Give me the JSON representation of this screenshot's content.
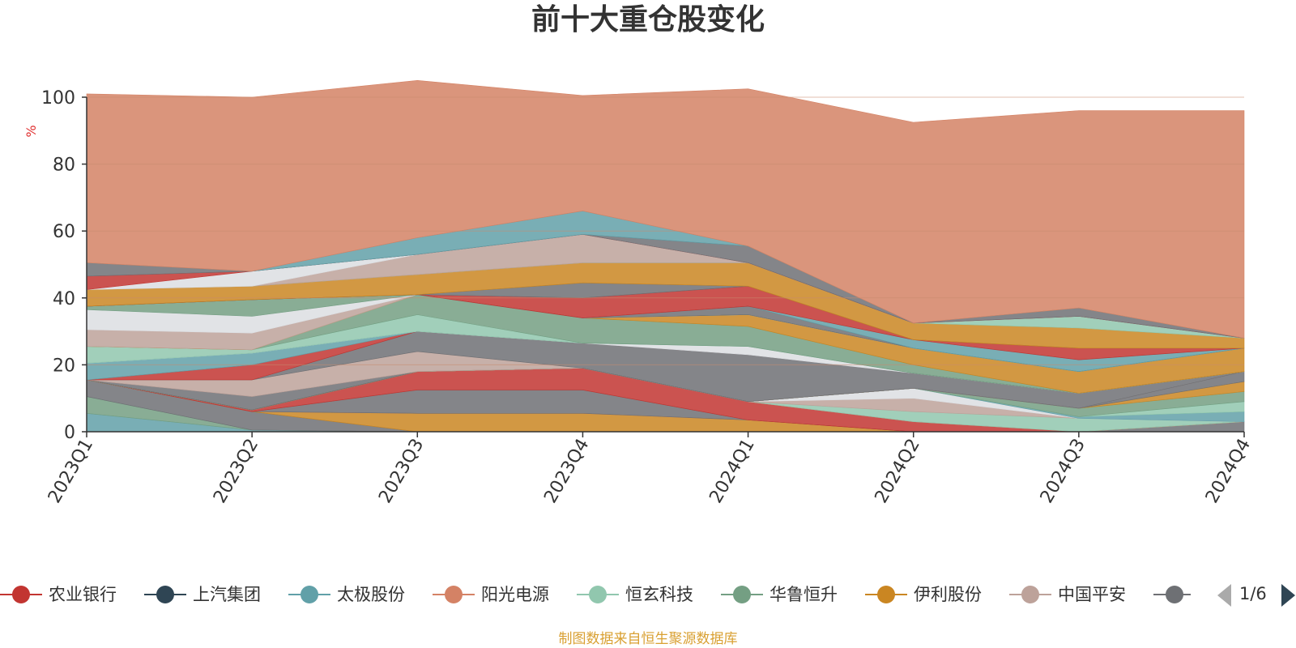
{
  "chart_data": {
    "type": "area",
    "stacked": true,
    "title": "前十大重仓股变化",
    "ylabel": "%",
    "ylim": [
      0,
      100
    ],
    "yticks": [
      "0",
      "20",
      "40",
      "60",
      "80",
      "100"
    ],
    "categories": [
      "2023Q1",
      "2023Q2",
      "2023Q3",
      "2023Q4",
      "2024Q1",
      "2024Q2",
      "2024Q3",
      "2024Q4"
    ],
    "series": [
      {
        "name": "农业银行",
        "color": "#c23531"
      },
      {
        "name": "上汽集团",
        "color": "#2f4554"
      },
      {
        "name": "太极股份",
        "color": "#61a0a8"
      },
      {
        "name": "阳光电源",
        "color": "#d48265"
      },
      {
        "name": "恒玄科技",
        "color": "#91c7ae"
      },
      {
        "name": "华鲁恒升",
        "color": "#749f83"
      },
      {
        "name": "伊利股份",
        "color": "#ca8622"
      },
      {
        "name": "中国平安",
        "color": "#bda29a"
      },
      {
        "name": "",
        "color": "#6e7074"
      }
    ],
    "layers": [
      {
        "color": "#61a0a8",
        "values": [
          5.5,
          0.5,
          0,
          0,
          0,
          0,
          0,
          0
        ]
      },
      {
        "color": "#749f83",
        "values": [
          5,
          0,
          0,
          0,
          0,
          0,
          0,
          0
        ]
      },
      {
        "color": "#6e7074",
        "values": [
          5,
          5.5,
          0,
          0,
          0,
          0,
          0,
          3
        ]
      },
      {
        "color": "#ca8622",
        "values": [
          0,
          0,
          5.5,
          5.5,
          3.5,
          0,
          0,
          0
        ]
      },
      {
        "color": "#d48265",
        "values": [
          0,
          0,
          0,
          0,
          0,
          0,
          0,
          0
        ]
      },
      {
        "color": "#6e7074",
        "values": [
          0,
          0,
          7,
          7,
          0,
          0,
          0,
          0
        ]
      },
      {
        "color": "#c23531",
        "values": [
          0,
          0.5,
          5.5,
          6.5,
          5.5,
          3,
          0,
          0
        ]
      },
      {
        "color": "#bda29a",
        "values": [
          0,
          0,
          0,
          0,
          0,
          0,
          0,
          0
        ]
      },
      {
        "color": "#d48265",
        "values": [
          0,
          0,
          0,
          0,
          0,
          0,
          0,
          0
        ]
      },
      {
        "color": "#91c7ae",
        "values": [
          0,
          0,
          0,
          0,
          0,
          3,
          4,
          0
        ]
      },
      {
        "color": "#bda29a",
        "values": [
          0,
          0,
          0,
          0,
          0,
          4,
          0,
          0
        ]
      },
      {
        "color": "#dcdee2",
        "values": [
          0,
          0,
          0,
          0,
          0,
          3,
          0,
          0
        ]
      },
      {
        "color": "#61a0a8",
        "values": [
          0,
          0,
          0,
          0,
          0,
          0,
          0.5,
          3
        ]
      },
      {
        "color": "#91c7ae",
        "values": [
          0,
          0,
          0,
          0,
          0,
          0,
          0,
          3
        ]
      },
      {
        "color": "#749f83",
        "values": [
          0,
          0,
          0,
          0,
          0,
          0,
          2.5,
          3
        ]
      },
      {
        "color": "#ca8622",
        "values": [
          0,
          0,
          0,
          0,
          0,
          0,
          0,
          3
        ]
      },
      {
        "color": "#6e7074",
        "values": [
          0,
          4,
          0,
          0,
          0,
          0,
          0,
          3
        ]
      },
      {
        "color": "#bda29a",
        "values": [
          0,
          5,
          6,
          0,
          0,
          0,
          0,
          0
        ]
      },
      {
        "color": "#6e7074",
        "values": [
          0,
          0,
          6,
          7.5,
          14,
          4.5,
          4.5,
          0
        ]
      },
      {
        "color": "#c23531",
        "values": [
          0,
          4.5,
          0,
          0,
          0,
          0,
          0,
          0
        ]
      },
      {
        "color": "#61a0a8",
        "values": [
          5,
          3.5,
          0,
          0,
          0,
          0,
          0,
          0
        ]
      },
      {
        "color": "#dcdee2",
        "values": [
          0,
          0,
          0,
          0,
          2.5,
          0,
          0,
          0
        ]
      },
      {
        "color": "#91c7ae",
        "values": [
          5,
          1,
          5,
          0,
          0,
          0,
          0,
          0
        ]
      },
      {
        "color": "#749f83",
        "values": [
          0,
          0,
          6,
          7.5,
          6,
          2.5,
          0,
          0
        ]
      },
      {
        "color": "#ca8622",
        "values": [
          0,
          0,
          0,
          0,
          3.5,
          5,
          6.5,
          7
        ]
      },
      {
        "color": "#bda29a",
        "values": [
          5,
          5,
          0,
          0,
          0,
          0,
          0,
          0
        ]
      },
      {
        "color": "#dcdee2",
        "values": [
          6,
          5,
          0,
          0,
          0,
          0,
          0,
          0
        ]
      },
      {
        "color": "#749f83",
        "values": [
          1,
          5,
          0,
          0,
          0,
          0,
          0,
          0
        ]
      },
      {
        "color": "#6e7074",
        "values": [
          0,
          0,
          0,
          0,
          2.5,
          0,
          0,
          0
        ]
      },
      {
        "color": "#61a0a8",
        "values": [
          0,
          0,
          0,
          0,
          0,
          2.5,
          3.5,
          0
        ]
      },
      {
        "color": "#c23531",
        "values": [
          0,
          0,
          0,
          6,
          6,
          0,
          3.5,
          0
        ]
      },
      {
        "color": "#6e7074",
        "values": [
          0,
          0,
          0,
          4.5,
          0,
          0,
          0,
          0
        ]
      },
      {
        "color": "#ca8622",
        "values": [
          5,
          4,
          6,
          6,
          7,
          5,
          6,
          3
        ]
      },
      {
        "color": "#91c7ae",
        "values": [
          0,
          0,
          0,
          0,
          0,
          0,
          3.5,
          0
        ]
      },
      {
        "color": "#bda29a",
        "values": [
          0,
          0,
          6,
          8.5,
          0,
          0,
          0,
          0
        ]
      },
      {
        "color": "#dcdee2",
        "values": [
          0,
          4.5,
          0,
          0,
          0,
          0,
          0,
          0
        ]
      },
      {
        "color": "#c23531",
        "values": [
          4,
          0,
          0,
          0,
          0,
          0,
          0,
          0
        ]
      },
      {
        "color": "#6e7074",
        "values": [
          4,
          0,
          0,
          0,
          5,
          0,
          2.5,
          0
        ]
      },
      {
        "color": "#61a0a8",
        "values": [
          0,
          0,
          5,
          7,
          0,
          0,
          0,
          0
        ]
      },
      {
        "color": "#d48265",
        "values": [
          50.5,
          52,
          47,
          34.5,
          47,
          60,
          59,
          68
        ]
      }
    ]
  },
  "legend": {
    "items": [
      {
        "label": "农业银行",
        "color": "#c23531"
      },
      {
        "label": "上汽集团",
        "color": "#2f4554"
      },
      {
        "label": "太极股份",
        "color": "#61a0a8"
      },
      {
        "label": "阳光电源",
        "color": "#d48265"
      },
      {
        "label": "恒玄科技",
        "color": "#91c7ae"
      },
      {
        "label": "华鲁恒升",
        "color": "#749f83"
      },
      {
        "label": "伊利股份",
        "color": "#ca8622"
      },
      {
        "label": "中国平安",
        "color": "#bda29a"
      },
      {
        "label": "",
        "color": "#6e7074"
      }
    ],
    "page_indicator": "1/6"
  },
  "source_note": "制图数据来自恒生聚源数据库",
  "colors": {
    "axis": "#333333",
    "grid": "#c98a6e",
    "ylabel": "#e03030",
    "pager_active": "#2f4554",
    "pager_inactive": "#aaaaaa",
    "source": "#d9a032"
  }
}
